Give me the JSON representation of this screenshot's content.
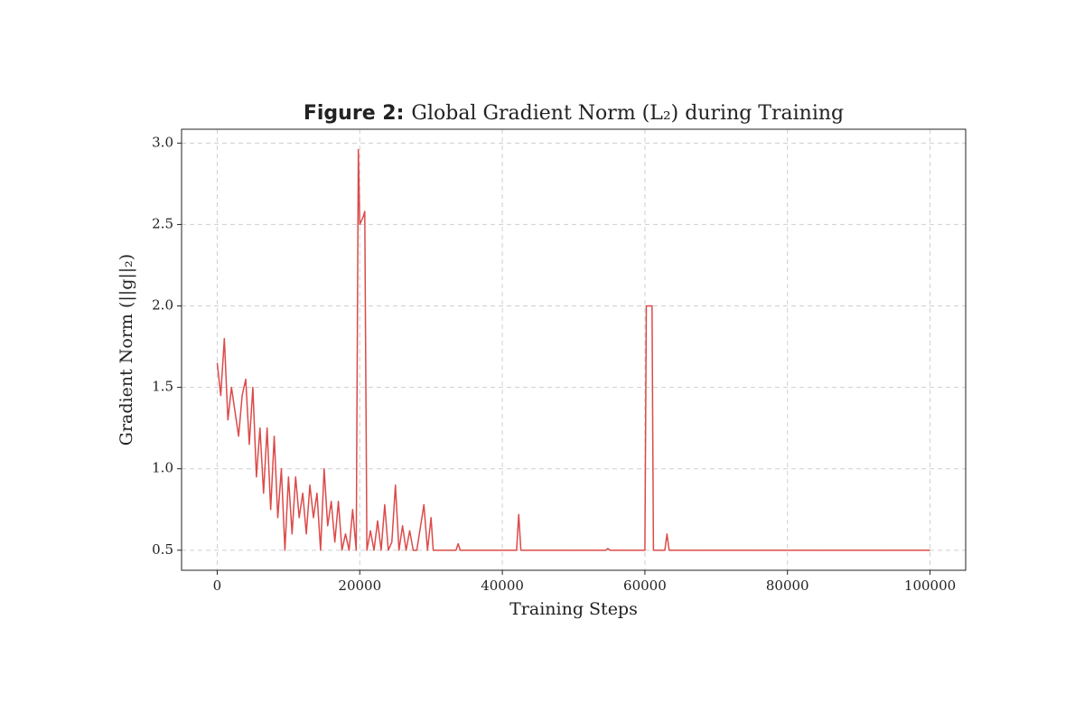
{
  "chart_data": {
    "type": "line",
    "title": {
      "label": "Figure 2:",
      "text": "Global Gradient Norm (L₂) during Training"
    },
    "x_label": "Training Steps",
    "y_label": "Gradient Norm (||g||₂)",
    "color": "#dc4a4a",
    "grid": true,
    "x": [
      0,
      500,
      1000,
      1500,
      2000,
      2500,
      3000,
      3500,
      4000,
      4500,
      5000,
      5500,
      6000,
      6500,
      7000,
      7500,
      8000,
      8500,
      9000,
      9500,
      10000,
      10500,
      11000,
      11500,
      12000,
      12500,
      13000,
      13500,
      14000,
      14500,
      15000,
      15500,
      16000,
      16500,
      17000,
      17500,
      18000,
      18500,
      19000,
      19500,
      19800,
      20000,
      20500,
      20700,
      21000,
      21500,
      22000,
      22500,
      23000,
      23500,
      24000,
      24500,
      25000,
      25500,
      26000,
      26500,
      27000,
      27500,
      28000,
      29000,
      29500,
      30000,
      30300,
      33500,
      33800,
      34100,
      42000,
      42300,
      42600,
      54500,
      54800,
      55100,
      60000,
      60200,
      61000,
      61200,
      62800,
      63100,
      63400,
      100000
    ],
    "values": [
      1.65,
      1.45,
      1.8,
      1.3,
      1.5,
      1.35,
      1.2,
      1.45,
      1.55,
      1.15,
      1.5,
      0.95,
      1.25,
      0.85,
      1.25,
      0.75,
      1.2,
      0.7,
      1.0,
      0.5,
      0.95,
      0.6,
      0.95,
      0.7,
      0.85,
      0.6,
      0.9,
      0.7,
      0.85,
      0.5,
      1.0,
      0.65,
      0.8,
      0.55,
      0.8,
      0.5,
      0.6,
      0.5,
      0.75,
      0.5,
      2.96,
      2.5,
      2.55,
      2.58,
      0.5,
      0.62,
      0.5,
      0.68,
      0.5,
      0.78,
      0.5,
      0.55,
      0.9,
      0.5,
      0.65,
      0.5,
      0.62,
      0.5,
      0.5,
      0.78,
      0.5,
      0.7,
      0.5,
      0.5,
      0.54,
      0.5,
      0.5,
      0.72,
      0.5,
      0.5,
      0.51,
      0.5,
      0.5,
      2.0,
      2.0,
      0.5,
      0.5,
      0.6,
      0.5,
      0.5
    ],
    "xlim": [
      -5000,
      105000
    ],
    "ylim": [
      0.377,
      3.085
    ],
    "xticks": [
      0,
      20000,
      40000,
      60000,
      80000,
      100000
    ],
    "yticks": [
      0.5,
      {
        "value": 1,
        "label": "1.0"
      },
      1.5,
      {
        "value": 2,
        "label": "2.0"
      },
      2.5,
      {
        "value": 3,
        "label": "3.0"
      }
    ]
  }
}
